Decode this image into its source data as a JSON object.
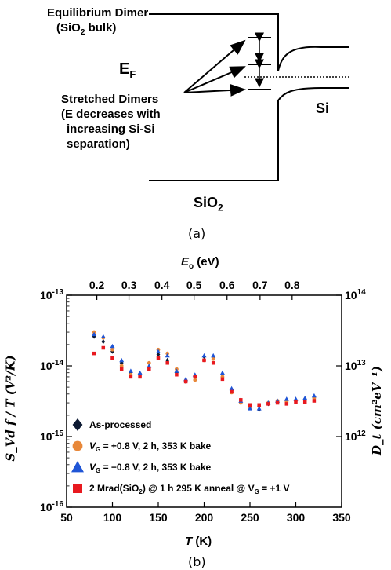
{
  "diagram": {
    "equilibrium_line1": "Equilibrium Dimer",
    "equilibrium_line2_pre": "(SiO",
    "equilibrium_line2_sub": "2",
    "equilibrium_line2_post": " bulk)",
    "ef_main": "E",
    "ef_sub": "F",
    "stretched_line1": "Stretched Dimers",
    "stretched_line2": "(E decreases with",
    "stretched_line3": "increasing Si-Si",
    "stretched_line4": "separation)",
    "si_label": "Si",
    "sio2_main": "SiO",
    "sio2_sub": "2",
    "caption": "(a)"
  },
  "chart": {
    "caption": "(b)",
    "top_axis_label_main": "E",
    "top_axis_label_sub": "o",
    "top_axis_label_unit": " (eV)",
    "bottom_axis_label_main": "T",
    "bottom_axis_label_unit": " (K)",
    "left_axis_label": "S_Vd f / T (V²/K)",
    "right_axis_label": "D_t (cm²eV⁻¹)",
    "left_ticks": [
      {
        "base": "10",
        "exp": "-13"
      },
      {
        "base": "10",
        "exp": "-14"
      },
      {
        "base": "10",
        "exp": "-15"
      },
      {
        "base": "10",
        "exp": "-16"
      }
    ],
    "right_ticks": [
      {
        "base": "10",
        "exp": "14"
      },
      {
        "base": "10",
        "exp": "13"
      },
      {
        "base": "10",
        "exp": "12"
      }
    ],
    "legend": [
      {
        "text": "As-processed"
      },
      {
        "pre": "V",
        "sub": "G",
        "text": " = +0.8 V, 2 h, 353 K bake"
      },
      {
        "pre": "V",
        "sub": "G",
        "text": " = −0.8 V, 2 h, 353 K bake"
      },
      {
        "pre": "2 Mrad(SiO",
        "sub": "2",
        "text": ") @ 1 h 295 K anneal @ V",
        "sub2": "G",
        "post": " = +1 V"
      }
    ]
  },
  "chart_data": {
    "type": "scatter",
    "x_axis": {
      "label": "T (K)",
      "range": [
        50,
        350
      ],
      "ticks": [
        50,
        100,
        150,
        200,
        250,
        300,
        350
      ]
    },
    "top_axis": {
      "label": "Eo (eV)",
      "ticks": [
        0.2,
        0.3,
        0.4,
        0.5,
        0.6,
        0.7,
        0.8
      ],
      "tick_T": [
        83,
        118,
        154,
        189,
        225,
        261,
        296
      ]
    },
    "y_axis": {
      "label": "SVd f/T (V^2/K)",
      "scale": "log",
      "range": [
        1e-16,
        1e-13
      ]
    },
    "y2_axis": {
      "label": "Dt (cm^2 eV^-1)",
      "scale": "log",
      "ticks": [
        1000000000000.0,
        10000000000000.0,
        100000000000000.0
      ]
    },
    "legend_position": "bottom-left",
    "series": [
      {
        "name": "As-processed",
        "marker": "diamond",
        "color": "#0d1a33",
        "x": [
          80,
          90,
          100,
          110,
          120,
          130,
          140,
          150,
          160,
          170,
          180,
          190,
          200,
          210,
          220,
          230,
          240,
          250,
          260,
          270,
          280,
          290,
          300,
          310,
          320
        ],
        "y": [
          2.6e-14,
          2.2e-14,
          1.6e-14,
          1.1e-14,
          8e-15,
          7.8e-15,
          9.5e-15,
          1.45e-14,
          1.2e-14,
          8e-15,
          6e-15,
          7e-15,
          1.35e-14,
          1.3e-14,
          7.5e-15,
          4.5e-15,
          3.3e-15,
          2.6e-15,
          2.4e-15,
          2.9e-15,
          3.1e-15,
          3.3e-15,
          3.3e-15,
          3.4e-15,
          3.6e-15
        ]
      },
      {
        "name": "VG = +0.8 V, 2 h, 353 K bake",
        "marker": "circle",
        "color": "#e8883a",
        "x": [
          80,
          90,
          100,
          110,
          120,
          130,
          140,
          150,
          160,
          170,
          180,
          190,
          200,
          210,
          220,
          230,
          240,
          250,
          260,
          270,
          280,
          290,
          300,
          310,
          320
        ],
        "y": [
          3e-14,
          2.5e-14,
          1.7e-14,
          1e-14,
          7.5e-15,
          7.5e-15,
          1.1e-14,
          1.7e-14,
          1.5e-14,
          9e-15,
          6e-15,
          6.3e-15,
          1.2e-14,
          1.25e-14,
          7e-15,
          4.2e-15,
          3e-15,
          2.6e-15,
          2.7e-15,
          3e-15,
          3.2e-15,
          3.1e-15,
          3.2e-15,
          3.3e-15,
          3.5e-15
        ]
      },
      {
        "name": "VG = −0.8 V, 2 h, 353 K bake",
        "marker": "triangle",
        "color": "#1f55d6",
        "x": [
          80,
          90,
          100,
          110,
          120,
          130,
          140,
          150,
          160,
          170,
          180,
          190,
          200,
          210,
          220,
          230,
          240,
          250,
          260,
          270,
          280,
          290,
          300,
          310,
          320
        ],
        "y": [
          2.8e-14,
          2.6e-14,
          1.9e-14,
          1.2e-14,
          8.5e-15,
          8e-15,
          1e-14,
          1.6e-14,
          1.4e-14,
          8.5e-15,
          6.5e-15,
          7.5e-15,
          1.4e-14,
          1.4e-14,
          8e-15,
          4.8e-15,
          3.2e-15,
          2.5e-15,
          2.5e-15,
          3e-15,
          3.2e-15,
          3.4e-15,
          3.4e-15,
          3.5e-15,
          3.8e-15
        ]
      },
      {
        "name": "2 Mrad(SiO2) @ 1 h 295 K anneal @ VG = +1 V",
        "marker": "square",
        "color": "#e8191f",
        "x": [
          80,
          90,
          100,
          110,
          120,
          130,
          140,
          150,
          160,
          170,
          180,
          190,
          200,
          210,
          220,
          230,
          240,
          250,
          260,
          270,
          280,
          290,
          300,
          310,
          320
        ],
        "y": [
          1.5e-14,
          1.8e-14,
          1.3e-14,
          9e-15,
          7e-15,
          7e-15,
          9e-15,
          1.3e-14,
          1.1e-14,
          7.5e-15,
          6e-15,
          7e-15,
          1.2e-14,
          1.1e-14,
          6.5e-15,
          4.3e-15,
          3.3e-15,
          2.8e-15,
          2.8e-15,
          2.9e-15,
          3e-15,
          2.9e-15,
          3.1e-15,
          3.1e-15,
          3.2e-15
        ]
      }
    ]
  }
}
